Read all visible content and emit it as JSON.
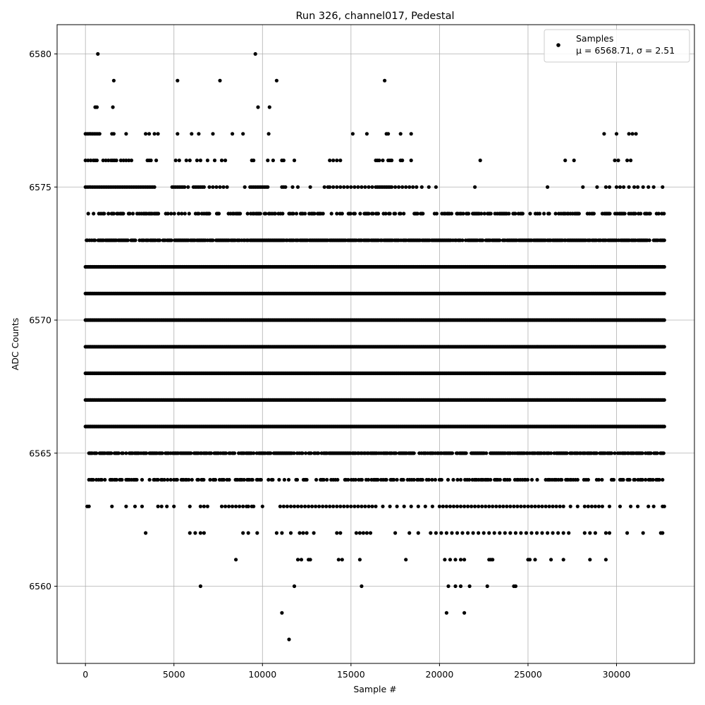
{
  "chart_data": {
    "type": "scatter",
    "title": "Run 326, channel017, Pedestal",
    "xlabel": "Sample #",
    "ylabel": "ADC Counts",
    "xlim": [
      -1600,
      34400
    ],
    "ylim": [
      6557.1,
      6581.1
    ],
    "xticks": [
      0,
      5000,
      10000,
      15000,
      20000,
      25000,
      30000
    ],
    "yticks": [
      6560,
      6565,
      6570,
      6575,
      6580
    ],
    "grid": true,
    "legend_position": "top-right",
    "marker_color": "#000000",
    "series": [
      {
        "name": "Samples",
        "stats_label": "μ = 6568.71, σ = 2.51",
        "x_range": [
          0,
          32700
        ],
        "levels": [
          {
            "y": 6580,
            "x": [
              700,
              9600
            ]
          },
          {
            "y": 6579,
            "x": [
              1600,
              5200,
              7600,
              10800,
              16900
            ]
          },
          {
            "y": 6578,
            "x": [
              550,
              650,
              1550,
              9750,
              10400
            ]
          },
          {
            "y": 6577,
            "x": [
              0,
              100,
              200,
              300,
              400,
              500,
              600,
              700,
              800,
              1500,
              1600,
              2300,
              3400,
              3600,
              3900,
              4100,
              5200,
              6000,
              6400,
              7200,
              8300,
              8900,
              10350,
              15100,
              15900,
              17000,
              17100,
              17800,
              18400,
              29300,
              30000,
              30700,
              30900,
              31100
            ]
          },
          {
            "y": 6576,
            "x": [
              0,
              150,
              300,
              450,
              550,
              650,
              1000,
              1150,
              1300,
              1450,
              1550,
              1650,
              1750,
              2000,
              2150,
              2300,
              2450,
              2600,
              3500,
              3600,
              3700,
              4000,
              5100,
              5300,
              5700,
              5900,
              6300,
              6500,
              6900,
              7300,
              7700,
              7900,
              9400,
              9500,
              10300,
              10600,
              11100,
              11200,
              11800,
              13800,
              14000,
              14200,
              14400,
              16400,
              16500,
              16600,
              16800,
              17100,
              17200,
              17300,
              17800,
              17900,
              18400,
              22300,
              27100,
              27600,
              29900,
              30100,
              30600,
              30800
            ]
          },
          {
            "y": 6575,
            "x": [
              0,
              100,
              200,
              300,
              400,
              500,
              600,
              700,
              800,
              900,
              1000,
              1100,
              1200,
              1300,
              1400,
              1500,
              1600,
              1700,
              1800,
              1900,
              2000,
              2100,
              2200,
              2300,
              2400,
              2500,
              2600,
              2700,
              2800,
              2900,
              3000,
              3100,
              3200,
              3300,
              3400,
              3500,
              3600,
              3700,
              3800,
              3900,
              4900,
              5000,
              5100,
              5200,
              5300,
              5400,
              5500,
              5600,
              5800,
              6100,
              6200,
              6300,
              6400,
              6500,
              6600,
              6700,
              7000,
              7200,
              7400,
              7600,
              7800,
              8000,
              9000,
              9300,
              9400,
              9500,
              9600,
              9700,
              9800,
              9900,
              10000,
              10100,
              10200,
              10300,
              11100,
              11200,
              11300,
              11700,
              12000,
              12700,
              13500,
              13700,
              13800,
              14000,
              14200,
              14400,
              14600,
              14800,
              15000,
              15200,
              15400,
              15600,
              15800,
              16000,
              16200,
              16400,
              16500,
              16600,
              16700,
              16800,
              16900,
              17000,
              17100,
              17200,
              17300,
              17500,
              17700,
              17900,
              18100,
              18300,
              18500,
              18700,
              19000,
              19400,
              19800,
              22000,
              26100,
              28100,
              28900,
              29400,
              29600,
              30000,
              30200,
              30400,
              30700,
              31000,
              31200,
              31500,
              31800,
              32100,
              32600
            ]
          },
          {
            "y": 6563,
            "x": [
              100,
              200,
              1500,
              2300,
              2800,
              3200,
              4100,
              4300,
              4600,
              5000,
              5900,
              6500,
              6700,
              6900,
              7700,
              7900,
              8100,
              8300,
              8500,
              8700,
              8900,
              9100,
              9200,
              9400,
              9500,
              10000,
              11000,
              11200,
              11400,
              11600,
              11800,
              12000,
              12200,
              12400,
              12600,
              12800,
              13000,
              13200,
              13400,
              13600,
              13800,
              14000,
              14200,
              14400,
              14600,
              14800,
              15000,
              15200,
              15400,
              15600,
              15800,
              16000,
              16200,
              16400,
              16800,
              17200,
              17600,
              18000,
              18400,
              18800,
              19200,
              19600,
              20000,
              20200,
              20400,
              20600,
              20800,
              21000,
              21200,
              21400,
              21600,
              21800,
              22000,
              22200,
              22400,
              22600,
              22800,
              23000,
              23200,
              23400,
              23600,
              23800,
              24000,
              24200,
              24400,
              24600,
              24800,
              25000,
              25200,
              25400,
              25600,
              25800,
              26000,
              26200,
              26400,
              26600,
              26800,
              27000,
              27400,
              27800,
              28200,
              28400,
              28600,
              28800,
              29000,
              29200,
              29600,
              30200,
              30800,
              31200,
              31800,
              32100,
              32600,
              32700
            ]
          },
          {
            "y": 6562,
            "x": [
              3400,
              5900,
              6200,
              6500,
              6700,
              8900,
              9200,
              9700,
              10800,
              11100,
              11600,
              12100,
              12300,
              12500,
              12900,
              14200,
              14400,
              15300,
              15500,
              15700,
              15900,
              16100,
              17500,
              18300,
              18800,
              19500,
              19800,
              20100,
              20400,
              20700,
              21000,
              21300,
              21600,
              21900,
              22200,
              22500,
              22800,
              23100,
              23400,
              23700,
              24000,
              24300,
              24600,
              24900,
              25200,
              25500,
              25800,
              26100,
              26400,
              26700,
              27000,
              27300,
              28200,
              28500,
              28800,
              29400,
              29600,
              30600,
              31500,
              32500,
              32600
            ]
          },
          {
            "y": 6561,
            "x": [
              8500,
              12000,
              12200,
              12600,
              12700,
              14300,
              14500,
              15500,
              18100,
              20300,
              20600,
              20900,
              21200,
              21400,
              22800,
              22900,
              23000,
              25000,
              25100,
              25400,
              26300,
              27000,
              28500,
              29400
            ]
          },
          {
            "y": 6560,
            "x": [
              6500,
              11800,
              15600,
              20500,
              20900,
              21200,
              21700,
              22700,
              24200,
              24300
            ]
          },
          {
            "y": 6559,
            "x": [
              11100,
              20400,
              21400
            ]
          },
          {
            "y": 6558,
            "x": [
              11500
            ]
          }
        ],
        "dense_levels": [
          {
            "y": 6574,
            "x_range": [
              100,
              32700
            ],
            "density": 0.45
          },
          {
            "y": 6573,
            "x_range": [
              0,
              32700
            ],
            "density": 0.85
          },
          {
            "y": 6572,
            "x_range": [
              0,
              32700
            ],
            "density": 1.0
          },
          {
            "y": 6571,
            "x_range": [
              0,
              32700
            ],
            "density": 1.0
          },
          {
            "y": 6570,
            "x_range": [
              0,
              32700
            ],
            "density": 1.0
          },
          {
            "y": 6569,
            "x_range": [
              0,
              32700
            ],
            "density": 1.0
          },
          {
            "y": 6568,
            "x_range": [
              0,
              32700
            ],
            "density": 1.0
          },
          {
            "y": 6567,
            "x_range": [
              0,
              32700
            ],
            "density": 1.0
          },
          {
            "y": 6566,
            "x_range": [
              0,
              32700
            ],
            "density": 1.0
          },
          {
            "y": 6565,
            "x_range": [
              200,
              32700
            ],
            "density": 0.75
          },
          {
            "y": 6564,
            "x_range": [
              200,
              32700
            ],
            "density": 0.45
          }
        ]
      }
    ]
  }
}
